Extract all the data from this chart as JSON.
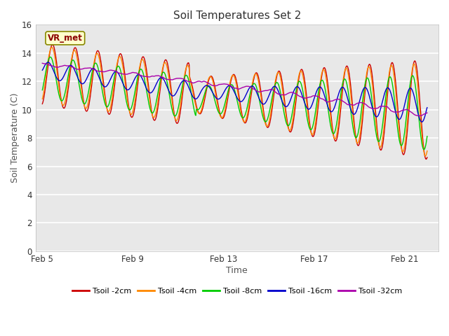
{
  "title": "Soil Temperatures Set 2",
  "xlabel": "Time",
  "ylabel": "Soil Temperature (C)",
  "annotation": "VR_met",
  "ylim": [
    0,
    16
  ],
  "yticks": [
    0,
    2,
    4,
    6,
    8,
    10,
    12,
    14,
    16
  ],
  "xtick_labels": [
    "Feb 5",
    "Feb 9",
    "Feb 13",
    "Feb 17",
    "Feb 21"
  ],
  "xtick_positions": [
    0,
    4,
    8,
    12,
    16
  ],
  "plot_bg_color": "#e8e8e8",
  "legend_entries": [
    "Tsoil -2cm",
    "Tsoil -4cm",
    "Tsoil -8cm",
    "Tsoil -16cm",
    "Tsoil -32cm"
  ],
  "line_colors": [
    "#cc0000",
    "#ff8800",
    "#00cc00",
    "#0000cc",
    "#aa00aa"
  ],
  "line_width": 1.0,
  "n_days": 17,
  "n_per_day": 48
}
